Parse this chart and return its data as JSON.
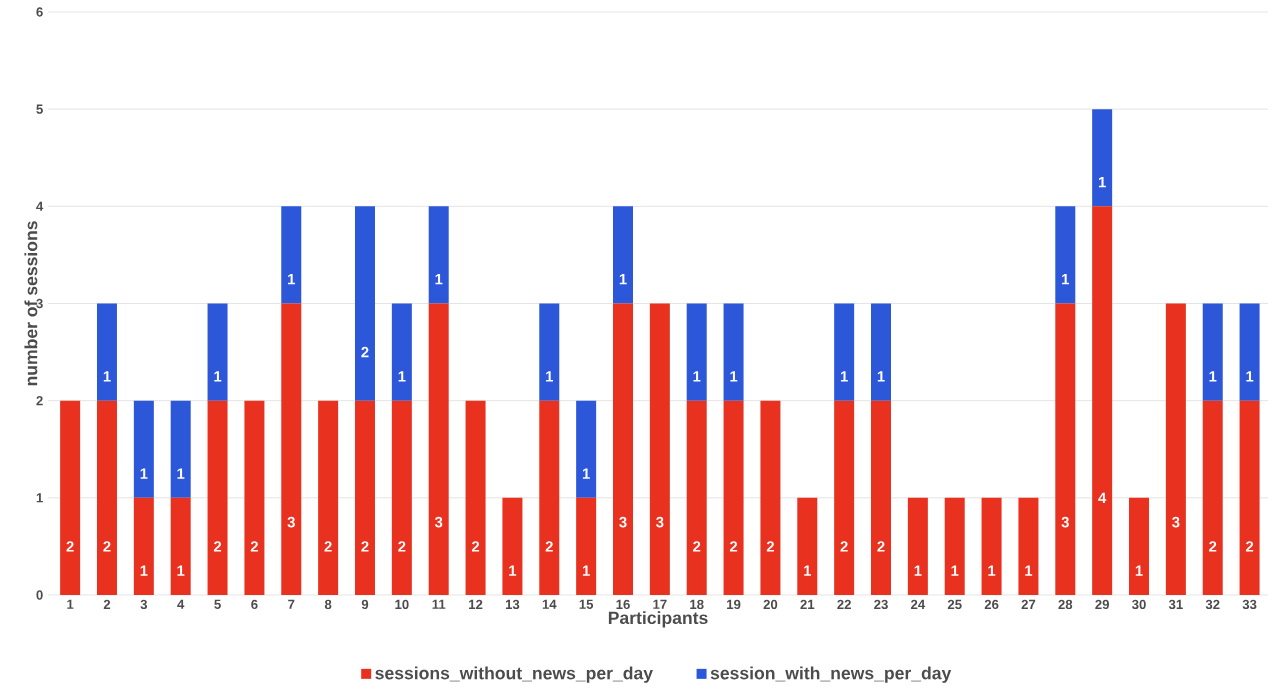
{
  "chart_data": {
    "type": "bar",
    "stacked": true,
    "xlabel": "Participants",
    "ylabel": "number of sessions",
    "categories": [
      "1",
      "2",
      "3",
      "4",
      "5",
      "6",
      "7",
      "8",
      "9",
      "10",
      "11",
      "12",
      "13",
      "14",
      "15",
      "16",
      "17",
      "18",
      "19",
      "20",
      "21",
      "22",
      "23",
      "24",
      "25",
      "26",
      "27",
      "28",
      "29",
      "30",
      "31",
      "32",
      "33"
    ],
    "series": [
      {
        "name": "sessions_without_news_per_day",
        "color": "#e8321f",
        "values": [
          2,
          2,
          1,
          1,
          2,
          2,
          3,
          2,
          2,
          2,
          3,
          2,
          1,
          2,
          1,
          3,
          3,
          2,
          2,
          2,
          1,
          2,
          2,
          1,
          1,
          1,
          1,
          3,
          4,
          1,
          3,
          2,
          2
        ]
      },
      {
        "name": "session_with_news_per_day",
        "color": "#2b57d8",
        "values": [
          null,
          1,
          1,
          1,
          1,
          null,
          1,
          null,
          2,
          1,
          1,
          null,
          null,
          1,
          1,
          1,
          null,
          1,
          1,
          null,
          null,
          1,
          1,
          null,
          null,
          null,
          null,
          1,
          1,
          null,
          null,
          1,
          1
        ]
      }
    ],
    "ylim": [
      0,
      6
    ],
    "yticks": [
      0,
      1,
      2,
      3,
      4,
      5,
      6
    ],
    "grid": "y",
    "legend": "bottom",
    "data_labels": true
  }
}
